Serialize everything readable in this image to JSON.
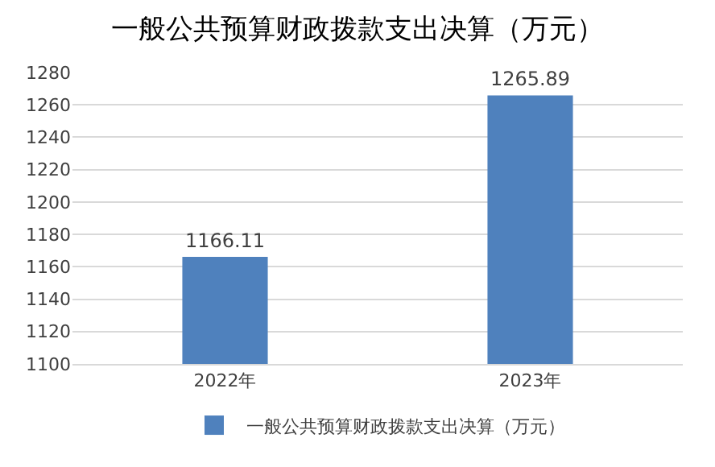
{
  "chart_data": {
    "type": "bar",
    "title": "一般公共预算财政拨款支出决算（万元）",
    "categories": [
      "2022年",
      "2023年"
    ],
    "series": [
      {
        "name": "一般公共预算财政拨款支出决算（万元）",
        "color": "#4f81bd",
        "values": [
          1166.11,
          1265.89
        ]
      }
    ],
    "ylim": [
      1100,
      1280
    ],
    "yticks": [
      1100,
      1120,
      1140,
      1160,
      1180,
      1200,
      1220,
      1240,
      1260,
      1280
    ],
    "grid": "y",
    "legend": "bottom",
    "data_labels": true
  }
}
